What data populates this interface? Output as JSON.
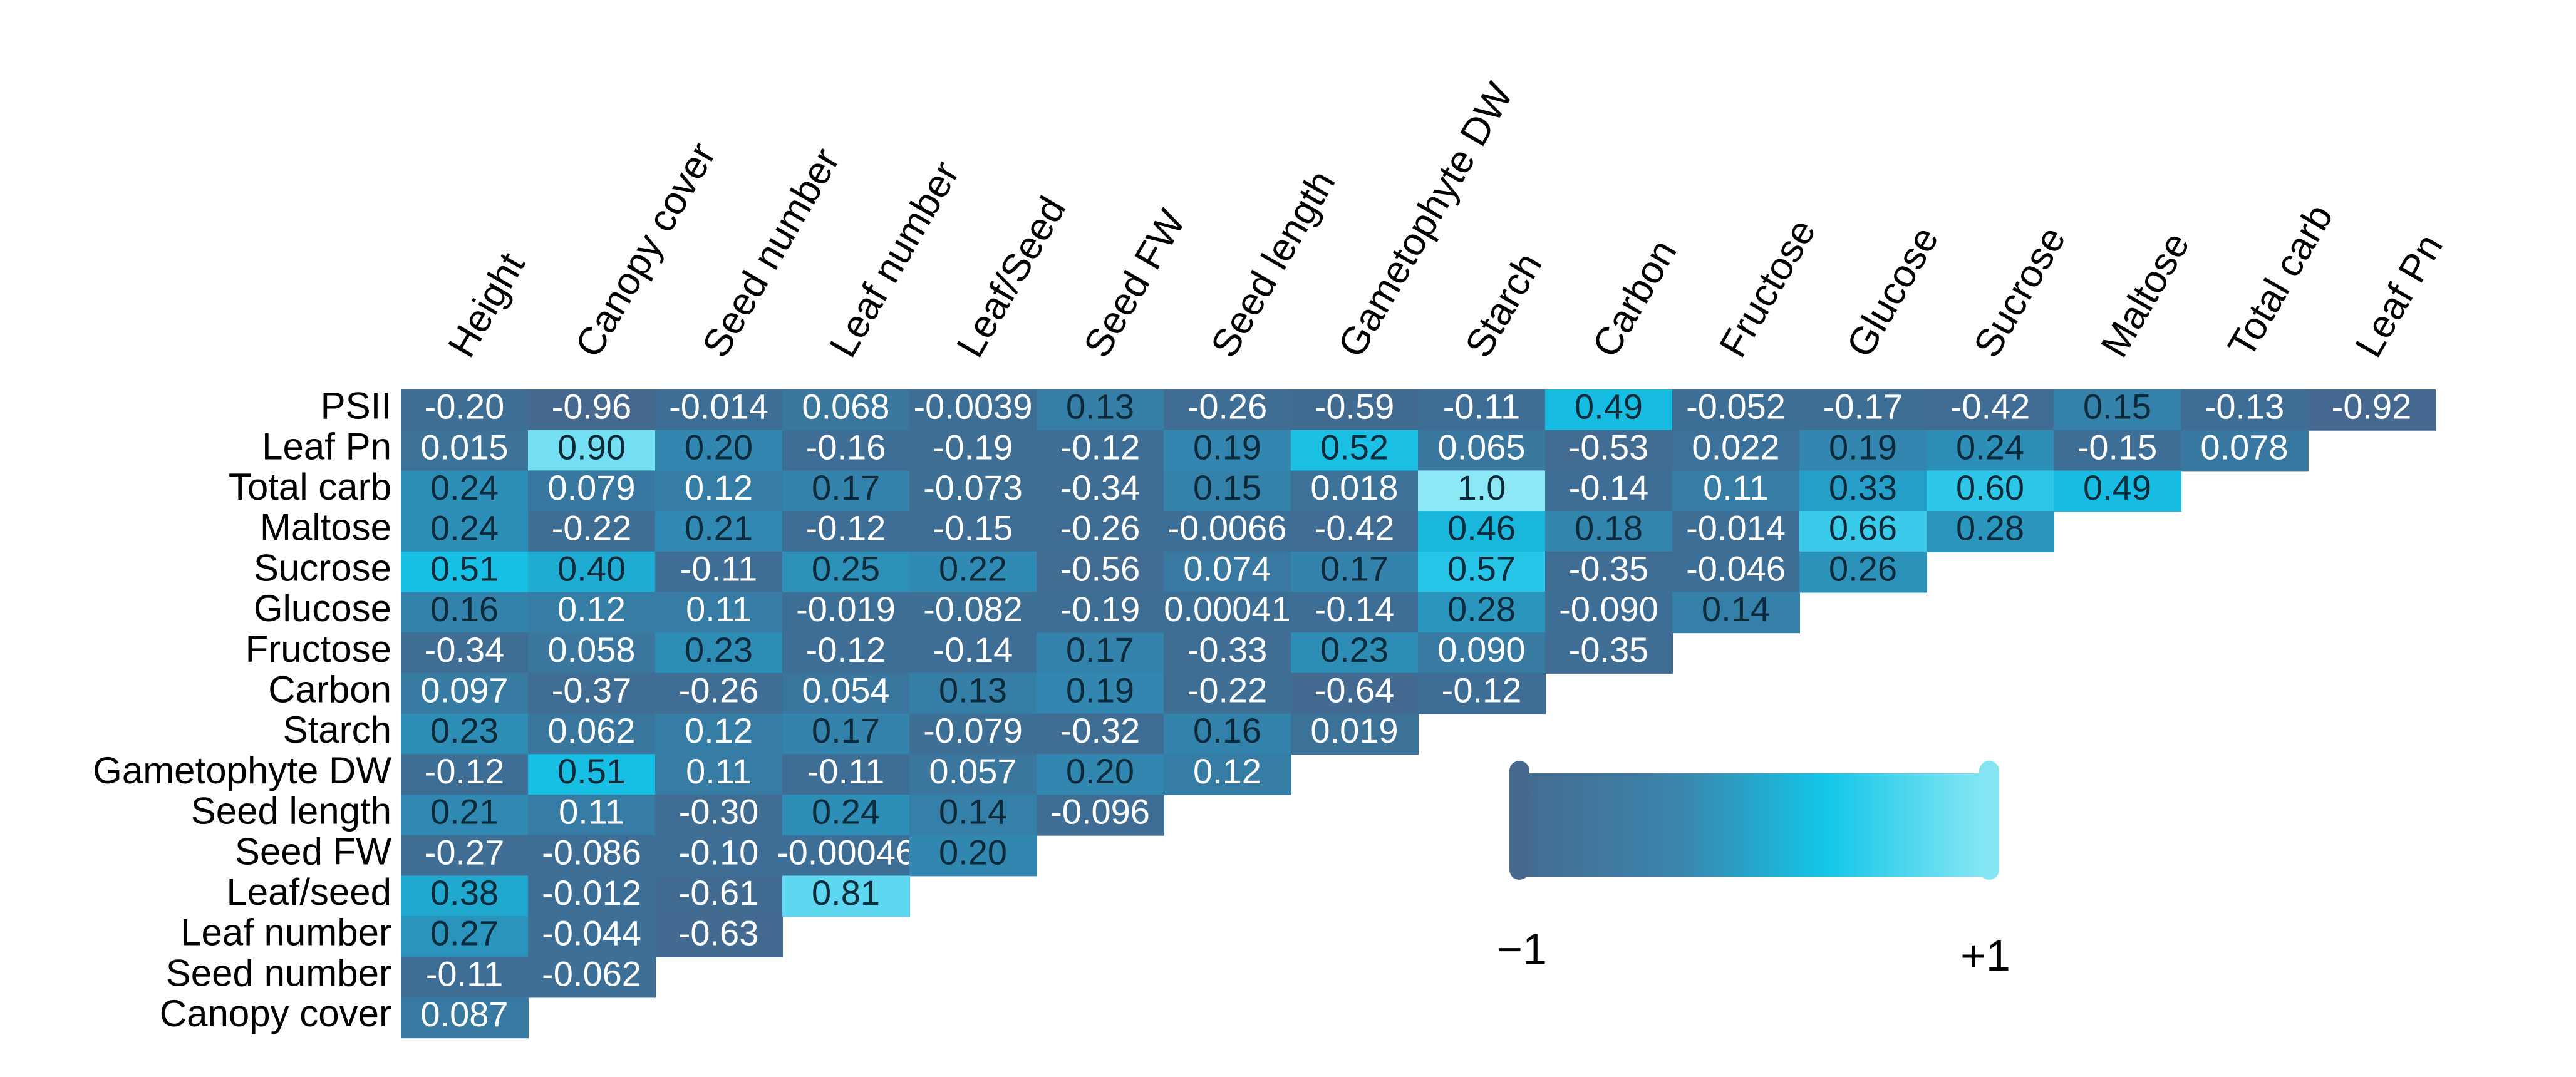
{
  "chart_data": {
    "type": "heatmap",
    "title": "",
    "columns": [
      "Height",
      "Canopy cover",
      "Seed number",
      "Leaf number",
      "Leaf/Seed",
      "Seed FW",
      "Seed length",
      "Gametophyte DW",
      "Starch",
      "Carbon",
      "Fructose",
      "Glucose",
      "Sucrose",
      "Maltose",
      "Total carb",
      "Leaf Pn"
    ],
    "rows": [
      {
        "label": "PSII",
        "values": [
          "-0.20",
          "-0.96",
          "-0.014",
          "0.068",
          "-0.0039",
          "0.13",
          "-0.26",
          "-0.59",
          "-0.11",
          "0.49",
          "-0.052",
          "-0.17",
          "-0.42",
          "0.15",
          "-0.13",
          "-0.92"
        ]
      },
      {
        "label": "Leaf Pn",
        "values": [
          "0.015",
          "0.90",
          "0.20",
          "-0.16",
          "-0.19",
          "-0.12",
          "0.19",
          "0.52",
          "0.065",
          "-0.53",
          "0.022",
          "0.19",
          "0.24",
          "-0.15",
          "0.078"
        ]
      },
      {
        "label": "Total carb",
        "values": [
          "0.24",
          "0.079",
          "0.12",
          "0.17",
          "-0.073",
          "-0.34",
          "0.15",
          "0.018",
          "1.0",
          "-0.14",
          "0.11",
          "0.33",
          "0.60",
          "0.49"
        ]
      },
      {
        "label": "Maltose",
        "values": [
          "0.24",
          "-0.22",
          "0.21",
          "-0.12",
          "-0.15",
          "-0.26",
          "-0.0066",
          "-0.42",
          "0.46",
          "0.18",
          "-0.014",
          "0.66",
          "0.28"
        ]
      },
      {
        "label": "Sucrose",
        "values": [
          "0.51",
          "0.40",
          "-0.11",
          "0.25",
          "0.22",
          "-0.56",
          "0.074",
          "0.17",
          "0.57",
          "-0.35",
          "-0.046",
          "0.26"
        ]
      },
      {
        "label": "Glucose",
        "values": [
          "0.16",
          "0.12",
          "0.11",
          "-0.019",
          "-0.082",
          "-0.19",
          "0.00041",
          "-0.14",
          "0.28",
          "-0.090",
          "0.14"
        ]
      },
      {
        "label": "Fructose",
        "values": [
          "-0.34",
          "0.058",
          "0.23",
          "-0.12",
          "-0.14",
          "0.17",
          "-0.33",
          "0.23",
          "0.090",
          "-0.35"
        ]
      },
      {
        "label": "Carbon",
        "values": [
          "0.097",
          "-0.37",
          "-0.26",
          "0.054",
          "0.13",
          "0.19",
          "-0.22",
          "-0.64",
          "-0.12"
        ]
      },
      {
        "label": "Starch",
        "values": [
          "0.23",
          "0.062",
          "0.12",
          "0.17",
          "-0.079",
          "-0.32",
          "0.16",
          "0.019"
        ]
      },
      {
        "label": "Gametophyte DW",
        "values": [
          "-0.12",
          "0.51",
          "0.11",
          "-0.11",
          "0.057",
          "0.20",
          "0.12"
        ]
      },
      {
        "label": "Seed length",
        "values": [
          "0.21",
          "0.11",
          "-0.30",
          "0.24",
          "0.14",
          "-0.096"
        ]
      },
      {
        "label": "Seed FW",
        "values": [
          "-0.27",
          "-0.086",
          "-0.10",
          "-0.00046",
          "0.20"
        ]
      },
      {
        "label": "Leaf/seed",
        "values": [
          "0.38",
          "-0.012",
          "-0.61",
          "0.81"
        ]
      },
      {
        "label": "Leaf number",
        "values": [
          "0.27",
          "-0.044",
          "-0.63"
        ]
      },
      {
        "label": "Seed number",
        "values": [
          "-0.11",
          "-0.062"
        ]
      },
      {
        "label": "Canopy cover",
        "values": [
          "0.087"
        ]
      }
    ],
    "color_scale": {
      "min_label": "−1",
      "max_label": "+1",
      "min": -1,
      "max": 1,
      "colors": [
        "#46698f",
        "#3a7fa8",
        "#12c6e8",
        "#84e6f3"
      ]
    }
  }
}
